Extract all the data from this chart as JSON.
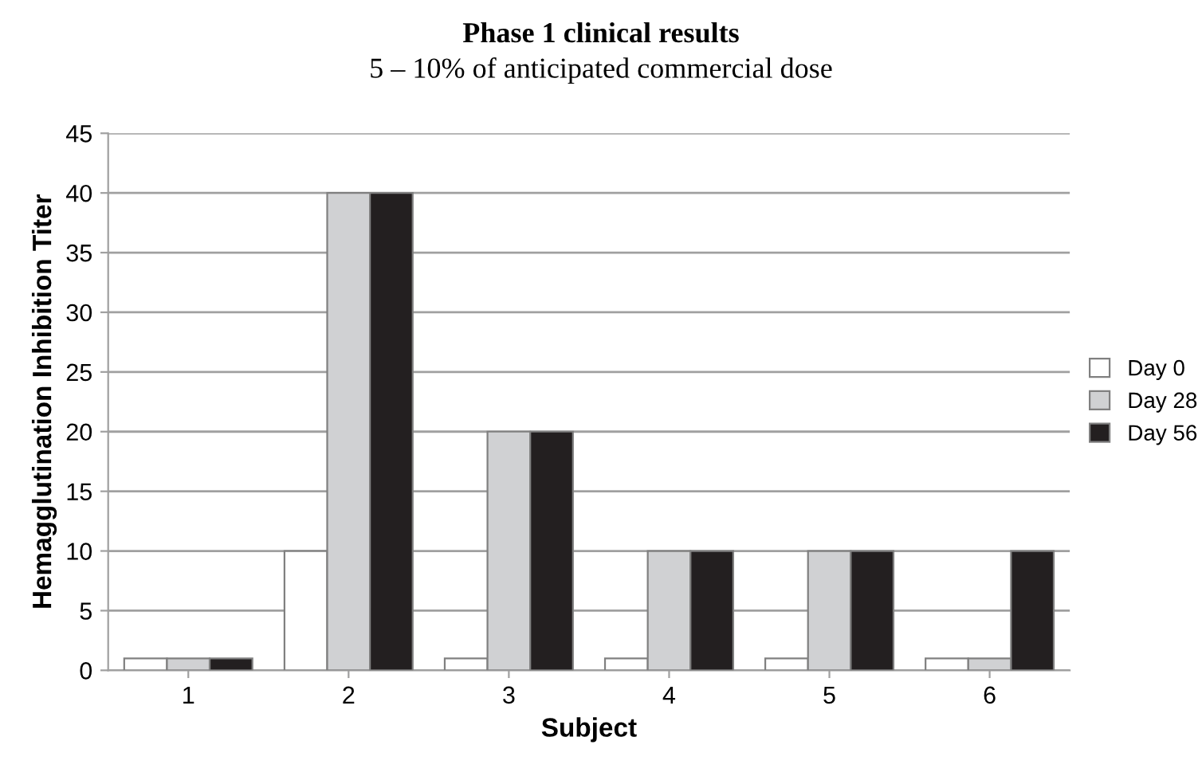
{
  "chart_data": {
    "type": "bar",
    "title": "Phase 1 clinical results",
    "subtitle": "5 – 10% of anticipated commercial dose",
    "xlabel": "Subject",
    "ylabel": "Hemagglutination Inhibition Titer",
    "categories": [
      "1",
      "2",
      "3",
      "4",
      "5",
      "6"
    ],
    "series": [
      {
        "name": "Day 0",
        "color": "#ffffff",
        "values": [
          1,
          10,
          1,
          1,
          1,
          1
        ]
      },
      {
        "name": "Day 28",
        "color": "#d0d1d3",
        "values": [
          1,
          40,
          20,
          10,
          10,
          1
        ]
      },
      {
        "name": "Day 56",
        "color": "#231f20",
        "values": [
          1,
          40,
          20,
          10,
          10,
          10
        ]
      }
    ],
    "ylim": [
      0,
      45
    ],
    "yticks": [
      0,
      5,
      10,
      15,
      20,
      25,
      30,
      35,
      40,
      45
    ],
    "grid": "y",
    "legend": "right"
  }
}
